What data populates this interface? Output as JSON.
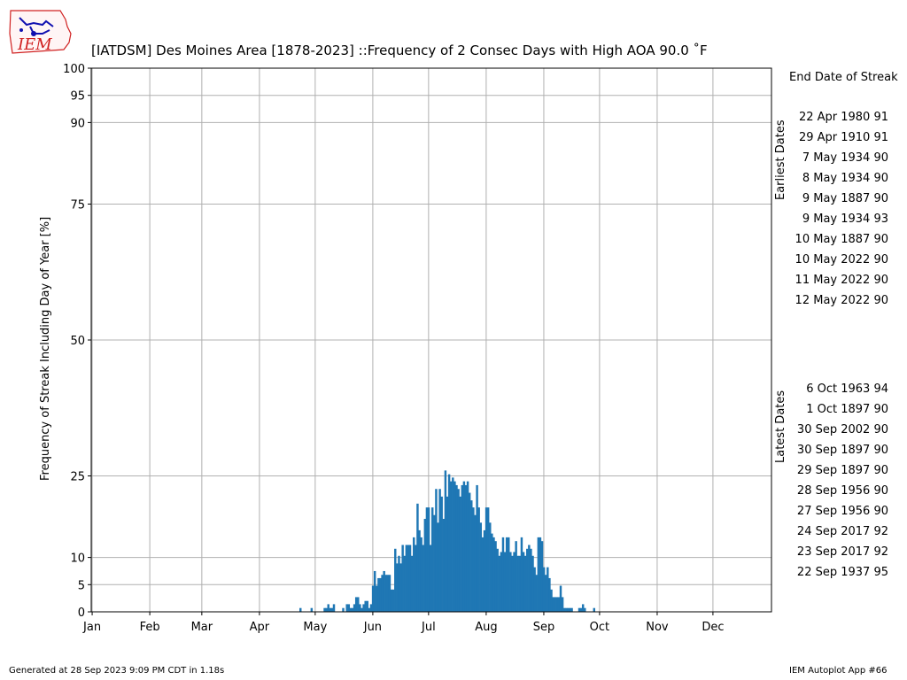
{
  "logo": {
    "text": "IEM"
  },
  "chart_data": {
    "type": "bar",
    "title": "[IATDSM] Des Moines Area [1878-2023] ::Frequency of 2 Consec Days with High AOA 90.0 ˚F",
    "xlabel": "",
    "ylabel": "Frequency of Streak Including Day of Year [%]",
    "ylim": [
      0,
      100
    ],
    "xlim_day_of_year": [
      1,
      366
    ],
    "yticks": [
      0,
      5,
      10,
      25,
      50,
      75,
      90,
      95,
      100
    ],
    "month_ticks": [
      {
        "label": "Jan",
        "day": 1
      },
      {
        "label": "Feb",
        "day": 32
      },
      {
        "label": "Mar",
        "day": 60
      },
      {
        "label": "Apr",
        "day": 91
      },
      {
        "label": "May",
        "day": 121
      },
      {
        "label": "Jun",
        "day": 152
      },
      {
        "label": "Jul",
        "day": 182
      },
      {
        "label": "Aug",
        "day": 213
      },
      {
        "label": "Sep",
        "day": 244
      },
      {
        "label": "Oct",
        "day": 274
      },
      {
        "label": "Nov",
        "day": 305
      },
      {
        "label": "Dec",
        "day": 335
      }
    ],
    "grid": true,
    "color": "#1f77b4",
    "series": [
      {
        "start_day": 113,
        "values": [
          0.7,
          0,
          0,
          0,
          0,
          0,
          0.7,
          0,
          0,
          0,
          0,
          0,
          0,
          0.7,
          0.7,
          1.4,
          0.7,
          0.7,
          1.4,
          0,
          0,
          0,
          0,
          0.7,
          0,
          1.4,
          1.4,
          0.7,
          0.7,
          1.4,
          2.7,
          2.7,
          1.4,
          0.7,
          1.4,
          2.0,
          2.0,
          0.7,
          1.4,
          4.8,
          7.5,
          4.8,
          6.2,
          6.2,
          6.8,
          7.5,
          6.8,
          6.8,
          6.8,
          4.1,
          4.1,
          11.6,
          8.9,
          10.3,
          8.9,
          12.3,
          10.3,
          12.3,
          12.3,
          12.3,
          10.3,
          13.7,
          12.3,
          19.9,
          15.0,
          13.7,
          12.3,
          17.1,
          19.2,
          19.2,
          12.3,
          19.2,
          17.8,
          22.6,
          16.4,
          22.6,
          21.2,
          17.1,
          26.0,
          21.2,
          25.3,
          24.0,
          24.7,
          24.0,
          23.3,
          22.6,
          21.2,
          23.3,
          24.0,
          23.3,
          24.0,
          21.9,
          20.5,
          19.2,
          17.8,
          23.3,
          19.2,
          16.4,
          13.7,
          15.0,
          19.2,
          19.2,
          16.4,
          14.4,
          13.7,
          13.0,
          11.6,
          10.3,
          11.0,
          13.7,
          11.0,
          13.7,
          13.7,
          11.0,
          10.3,
          11.0,
          13.0,
          10.3,
          10.3,
          13.7,
          11.0,
          10.3,
          11.6,
          12.3,
          11.6,
          10.3,
          8.2,
          6.8,
          13.7,
          13.7,
          13.0,
          8.2,
          6.8,
          8.2,
          6.2,
          4.1,
          2.7,
          2.7,
          2.7,
          2.7,
          4.8,
          2.7,
          0.7,
          0.7,
          0.7,
          0.7,
          0.7,
          0,
          0,
          0,
          0.7,
          0.7,
          1.4,
          0.7,
          0,
          0,
          0,
          0,
          0.7
        ]
      }
    ]
  },
  "side_panel": {
    "header": "End Date of Streak",
    "earliest_label": "Earliest Dates",
    "earliest": [
      "22 Apr 1980 91",
      "29 Apr 1910 91",
      "7 May 1934 90",
      "8 May 1934 90",
      "9 May 1887 90",
      "9 May 1934 93",
      "10 May 1887 90",
      "10 May 2022 90",
      "11 May 2022 90",
      "12 May 2022 90"
    ],
    "latest_label": "Latest Dates",
    "latest": [
      "6 Oct 1963 94",
      "1 Oct 1897 90",
      "30 Sep 2002 90",
      "30 Sep 1897 90",
      "29 Sep 1897 90",
      "28 Sep 1956 90",
      "27 Sep 1956 90",
      "24 Sep 2017 92",
      "23 Sep 2017 92",
      "22 Sep 1937 95"
    ]
  },
  "footer": {
    "generated": "Generated at 28 Sep 2023 9:09 PM CDT in 1.18s",
    "app": "IEM Autoplot App #66"
  }
}
